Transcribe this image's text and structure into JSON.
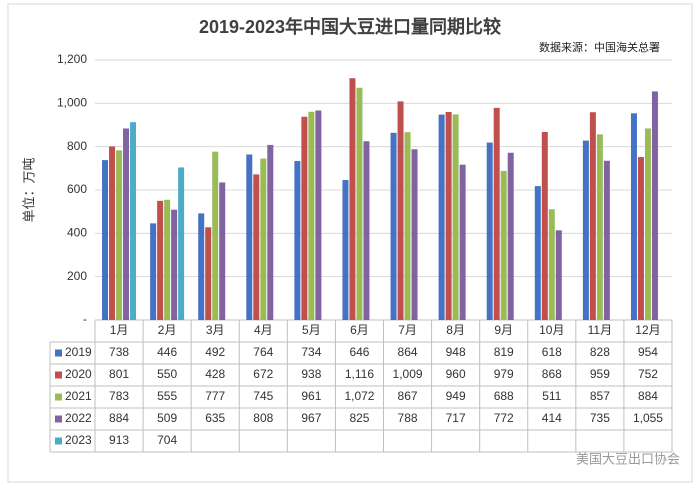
{
  "chart_data": {
    "type": "bar",
    "title": "2019-2023年中国大豆进口量同期比较",
    "source": "数据来源：中国海关总署",
    "y_label": "单位：万吨",
    "watermark": "美国大豆出口协会",
    "categories": [
      "1月",
      "2月",
      "3月",
      "4月",
      "5月",
      "6月",
      "7月",
      "8月",
      "9月",
      "10月",
      "11月",
      "12月"
    ],
    "series": [
      {
        "name": "2019",
        "color": "#4472c4",
        "values": [
          738,
          446,
          492,
          764,
          734,
          646,
          864,
          948,
          819,
          618,
          828,
          954
        ]
      },
      {
        "name": "2020",
        "color": "#c0504d",
        "values": [
          801,
          550,
          428,
          672,
          938,
          1116,
          1009,
          960,
          979,
          868,
          959,
          752
        ],
        "value_labels": [
          "801",
          "550",
          "428",
          "672",
          "938",
          "1,116",
          "1,009",
          "960",
          "979",
          "868",
          "959",
          "752"
        ]
      },
      {
        "name": "2021",
        "color": "#9bbb59",
        "values": [
          783,
          555,
          777,
          745,
          961,
          1072,
          867,
          949,
          688,
          511,
          857,
          884
        ],
        "value_labels": [
          "783",
          "555",
          "777",
          "745",
          "961",
          "1,072",
          "867",
          "949",
          "688",
          "511",
          "857",
          "884"
        ]
      },
      {
        "name": "2022",
        "color": "#8064a2",
        "values": [
          884,
          509,
          635,
          808,
          967,
          825,
          788,
          717,
          772,
          414,
          735,
          1055
        ],
        "value_labels": [
          "884",
          "509",
          "635",
          "808",
          "967",
          "825",
          "788",
          "717",
          "772",
          "414",
          "735",
          "1,055"
        ]
      },
      {
        "name": "2023",
        "color": "#4bacc6",
        "values": [
          913,
          704,
          null,
          null,
          null,
          null,
          null,
          null,
          null,
          null,
          null,
          null
        ]
      }
    ],
    "ylim": [
      0,
      1200
    ],
    "yticks": [
      {
        "value": 0,
        "label": "-"
      },
      200,
      400,
      600,
      800,
      {
        "value": 1000,
        "label": "1,000"
      },
      {
        "value": 1200,
        "label": "1,200"
      }
    ],
    "grid": true
  }
}
